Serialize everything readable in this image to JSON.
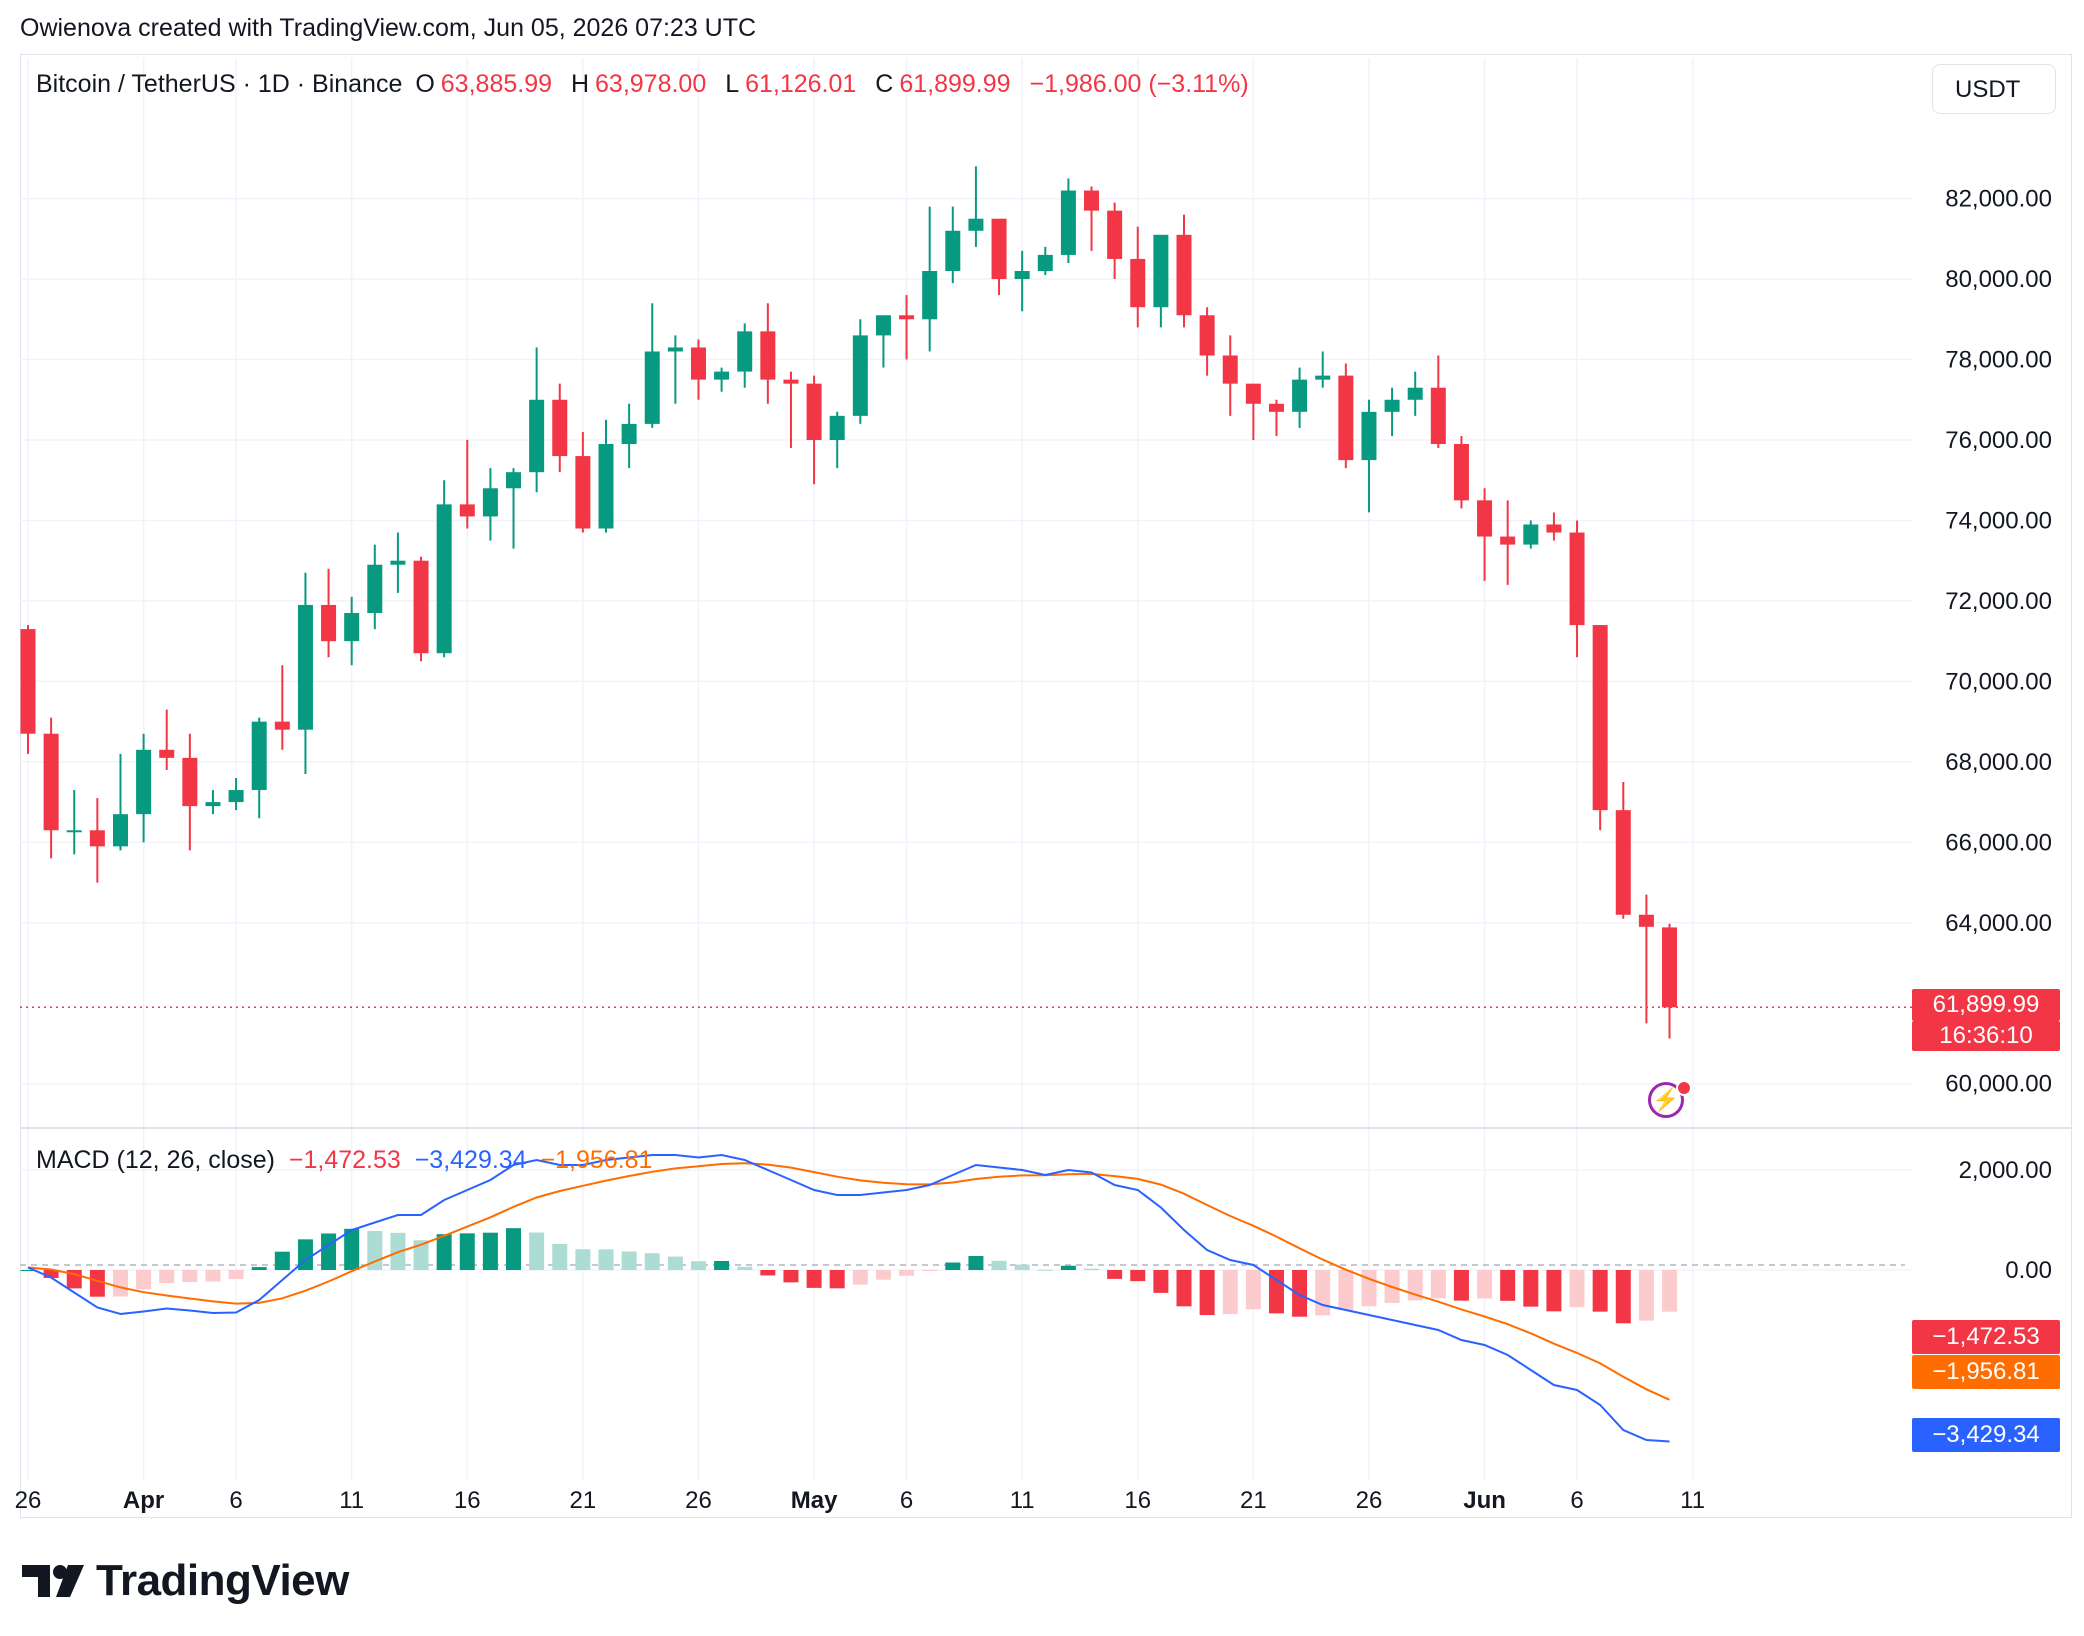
{
  "header": {
    "created_note": "Owienova created with TradingView.com, Jun 05, 2026 07:23 UTC"
  },
  "symbol": {
    "title": "Bitcoin / TetherUS · 1D · Binance",
    "o_label": "O",
    "o_value": "63,885.99",
    "h_label": "H",
    "h_value": "63,978.00",
    "l_label": "L",
    "l_value": "61,126.01",
    "c_label": "C",
    "c_value": "61,899.99",
    "change": "−1,986.00 (−3.11%)"
  },
  "currency_button": "USDT",
  "last_price": {
    "price": "61,899.99",
    "countdown": "16:36:10"
  },
  "macd": {
    "title": "MACD (12, 26, close)",
    "hist_value": "−1,472.53",
    "macd_value": "−3,429.34",
    "signal_value": "−1,956.81"
  },
  "colors": {
    "up": "#089981",
    "down": "#f23645",
    "up_light": "#acdcd4",
    "down_light": "#fccbcd",
    "macd_line": "#2962ff",
    "signal_line": "#ff6d00"
  },
  "logo_text": "TradingView",
  "chart_data": [
    {
      "type": "candlestick",
      "title": "Bitcoin / TetherUS · 1D · Binance",
      "price_axis_labels": [
        "82,000.00",
        "80,000.00",
        "78,000.00",
        "76,000.00",
        "74,000.00",
        "72,000.00",
        "70,000.00",
        "68,000.00",
        "66,000.00",
        "64,000.00",
        "60,000.00"
      ],
      "date_axis_labels": [
        "26",
        "Apr",
        "6",
        "11",
        "16",
        "21",
        "26",
        "May",
        "6",
        "11",
        "16",
        "21",
        "26",
        "Jun",
        "6",
        "11"
      ],
      "ylim": [
        58900,
        84500
      ],
      "grid": true,
      "candles": [
        {
          "o": 71300,
          "h": 71400,
          "l": 68200,
          "c": 68700
        },
        {
          "o": 68700,
          "h": 69100,
          "l": 65600,
          "c": 66300
        },
        {
          "o": 66300,
          "h": 67300,
          "l": 65700,
          "c": 66300
        },
        {
          "o": 66300,
          "h": 67100,
          "l": 65000,
          "c": 65900
        },
        {
          "o": 65900,
          "h": 68200,
          "l": 65800,
          "c": 66700
        },
        {
          "o": 66700,
          "h": 68700,
          "l": 66000,
          "c": 68300
        },
        {
          "o": 68300,
          "h": 69300,
          "l": 67800,
          "c": 68100
        },
        {
          "o": 68100,
          "h": 68700,
          "l": 65800,
          "c": 66900
        },
        {
          "o": 66900,
          "h": 67300,
          "l": 66700,
          "c": 67000
        },
        {
          "o": 67000,
          "h": 67600,
          "l": 66800,
          "c": 67300
        },
        {
          "o": 67300,
          "h": 69100,
          "l": 66600,
          "c": 69000
        },
        {
          "o": 69000,
          "h": 70400,
          "l": 68300,
          "c": 68800
        },
        {
          "o": 68800,
          "h": 72700,
          "l": 67700,
          "c": 71900
        },
        {
          "o": 71900,
          "h": 72800,
          "l": 70600,
          "c": 71000
        },
        {
          "o": 71000,
          "h": 72100,
          "l": 70400,
          "c": 71700
        },
        {
          "o": 71700,
          "h": 73400,
          "l": 71300,
          "c": 72900
        },
        {
          "o": 72900,
          "h": 73700,
          "l": 72200,
          "c": 73000
        },
        {
          "o": 73000,
          "h": 73100,
          "l": 70500,
          "c": 70700
        },
        {
          "o": 70700,
          "h": 75000,
          "l": 70600,
          "c": 74400
        },
        {
          "o": 74400,
          "h": 76000,
          "l": 73800,
          "c": 74100
        },
        {
          "o": 74100,
          "h": 75300,
          "l": 73500,
          "c": 74800
        },
        {
          "o": 74800,
          "h": 75300,
          "l": 73300,
          "c": 75200
        },
        {
          "o": 75200,
          "h": 78300,
          "l": 74700,
          "c": 77000
        },
        {
          "o": 77000,
          "h": 77400,
          "l": 75200,
          "c": 75600
        },
        {
          "o": 75600,
          "h": 76200,
          "l": 73700,
          "c": 73800
        },
        {
          "o": 73800,
          "h": 76500,
          "l": 73700,
          "c": 75900
        },
        {
          "o": 75900,
          "h": 76900,
          "l": 75300,
          "c": 76400
        },
        {
          "o": 76400,
          "h": 79400,
          "l": 76300,
          "c": 78200
        },
        {
          "o": 78200,
          "h": 78600,
          "l": 76900,
          "c": 78300
        },
        {
          "o": 78300,
          "h": 78500,
          "l": 77000,
          "c": 77500
        },
        {
          "o": 77500,
          "h": 77800,
          "l": 77200,
          "c": 77700
        },
        {
          "o": 77700,
          "h": 78900,
          "l": 77300,
          "c": 78700
        },
        {
          "o": 78700,
          "h": 79400,
          "l": 76900,
          "c": 77500
        },
        {
          "o": 77500,
          "h": 77700,
          "l": 75800,
          "c": 77400
        },
        {
          "o": 77400,
          "h": 77600,
          "l": 74900,
          "c": 76000
        },
        {
          "o": 76000,
          "h": 76700,
          "l": 75300,
          "c": 76600
        },
        {
          "o": 76600,
          "h": 79000,
          "l": 76400,
          "c": 78600
        },
        {
          "o": 78600,
          "h": 79000,
          "l": 77800,
          "c": 79100
        },
        {
          "o": 79100,
          "h": 79600,
          "l": 78000,
          "c": 79000
        },
        {
          "o": 79000,
          "h": 81800,
          "l": 78200,
          "c": 80200
        },
        {
          "o": 80200,
          "h": 81800,
          "l": 79900,
          "c": 81200
        },
        {
          "o": 81200,
          "h": 82800,
          "l": 80800,
          "c": 81500
        },
        {
          "o": 81500,
          "h": 81400,
          "l": 79600,
          "c": 80000
        },
        {
          "o": 80000,
          "h": 80700,
          "l": 79200,
          "c": 80200
        },
        {
          "o": 80200,
          "h": 80800,
          "l": 80100,
          "c": 80600
        },
        {
          "o": 80600,
          "h": 82500,
          "l": 80400,
          "c": 82200
        },
        {
          "o": 82200,
          "h": 82300,
          "l": 80700,
          "c": 81700
        },
        {
          "o": 81700,
          "h": 81900,
          "l": 80000,
          "c": 80500
        },
        {
          "o": 80500,
          "h": 81300,
          "l": 78800,
          "c": 79300
        },
        {
          "o": 79300,
          "h": 81000,
          "l": 78800,
          "c": 81100
        },
        {
          "o": 81100,
          "h": 81600,
          "l": 78800,
          "c": 79100
        },
        {
          "o": 79100,
          "h": 79300,
          "l": 77600,
          "c": 78100
        },
        {
          "o": 78100,
          "h": 78600,
          "l": 76600,
          "c": 77400
        },
        {
          "o": 77400,
          "h": 77300,
          "l": 76000,
          "c": 76900
        },
        {
          "o": 76900,
          "h": 77000,
          "l": 76100,
          "c": 76700
        },
        {
          "o": 76700,
          "h": 77800,
          "l": 76300,
          "c": 77500
        },
        {
          "o": 77500,
          "h": 78200,
          "l": 77300,
          "c": 77600
        },
        {
          "o": 77600,
          "h": 77900,
          "l": 75300,
          "c": 75500
        },
        {
          "o": 75500,
          "h": 77000,
          "l": 74200,
          "c": 76700
        },
        {
          "o": 76700,
          "h": 77300,
          "l": 76100,
          "c": 77000
        },
        {
          "o": 77000,
          "h": 77700,
          "l": 76600,
          "c": 77300
        },
        {
          "o": 77300,
          "h": 78100,
          "l": 75800,
          "c": 75900
        },
        {
          "o": 75900,
          "h": 76100,
          "l": 74300,
          "c": 74500
        },
        {
          "o": 74500,
          "h": 74800,
          "l": 72500,
          "c": 73600
        },
        {
          "o": 73600,
          "h": 74500,
          "l": 72400,
          "c": 73400
        },
        {
          "o": 73400,
          "h": 74000,
          "l": 73300,
          "c": 73900
        },
        {
          "o": 73900,
          "h": 74200,
          "l": 73500,
          "c": 73700
        },
        {
          "o": 73700,
          "h": 74000,
          "l": 70600,
          "c": 71400
        },
        {
          "o": 71400,
          "h": 71400,
          "l": 66300,
          "c": 66800
        },
        {
          "o": 66800,
          "h": 67500,
          "l": 64100,
          "c": 64200
        },
        {
          "o": 64200,
          "h": 64700,
          "l": 61500,
          "c": 63900
        },
        {
          "o": 63886,
          "h": 63978,
          "l": 61126,
          "c": 61900
        }
      ]
    },
    {
      "type": "macd",
      "title": "MACD (12, 26, close)",
      "axis_labels": [
        "2,000.00",
        "0.00"
      ],
      "ylim": [
        -4200,
        2800
      ],
      "macd": [
        50,
        -150,
        -450,
        -750,
        -880,
        -830,
        -770,
        -810,
        -860,
        -850,
        -600,
        -200,
        200,
        500,
        800,
        950,
        1100,
        1100,
        1400,
        1600,
        1800,
        2100,
        2200,
        2100,
        2100,
        2200,
        2250,
        2300,
        2300,
        2250,
        2300,
        2200,
        2000,
        1800,
        1600,
        1500,
        1500,
        1550,
        1600,
        1700,
        1900,
        2100,
        2050,
        2000,
        1900,
        2000,
        1950,
        1700,
        1600,
        1250,
        800,
        400,
        200,
        100,
        -200,
        -500,
        -700,
        -800,
        -900,
        -1000,
        -1100,
        -1200,
        -1400,
        -1500,
        -1700,
        -2000,
        -2300,
        -2400,
        -2700,
        -3200,
        -3400,
        -3429
      ]
    }
  ]
}
